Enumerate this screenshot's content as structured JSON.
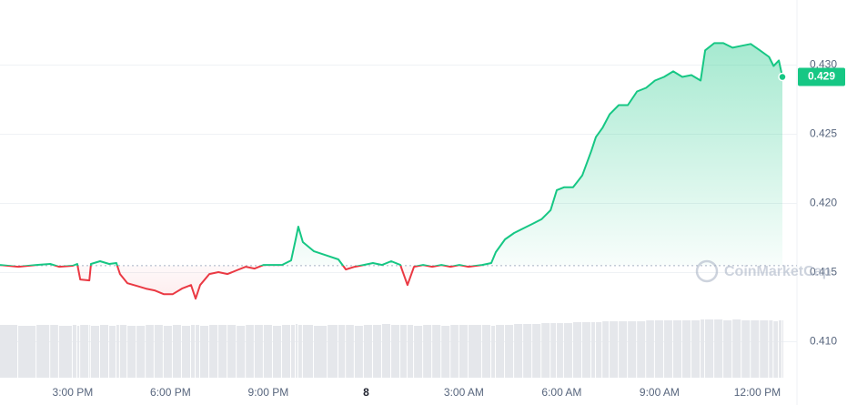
{
  "chart_data": {
    "type": "line",
    "x": [
      12.77,
      13.33,
      13.89,
      14.31,
      14.58,
      15.0,
      15.14,
      15.23,
      15.51,
      15.56,
      15.84,
      16.12,
      16.34,
      16.45,
      16.68,
      16.96,
      17.24,
      17.51,
      17.79,
      18.07,
      18.35,
      18.63,
      18.77,
      18.91,
      19.19,
      19.47,
      19.75,
      20.03,
      20.31,
      20.58,
      20.86,
      21.14,
      21.42,
      21.7,
      21.84,
      21.92,
      22.06,
      22.4,
      22.82,
      23.15,
      23.38,
      23.65,
      23.93,
      24.21,
      24.49,
      24.77,
      25.05,
      25.27,
      25.47,
      25.75,
      26.03,
      26.31,
      26.59,
      26.86,
      27.14,
      27.56,
      27.84,
      27.98,
      28.26,
      28.54,
      28.82,
      29.1,
      29.38,
      29.66,
      29.85,
      30.07,
      30.35,
      30.63,
      30.91,
      31.05,
      31.25,
      31.47,
      31.75,
      32.03,
      32.31,
      32.59,
      32.86,
      33.14,
      33.42,
      33.7,
      33.98,
      34.26,
      34.4,
      34.68,
      34.96,
      35.24,
      35.52,
      35.8,
      36.08,
      36.36,
      36.5,
      36.66,
      36.77
    ],
    "series": [
      {
        "color": "#16c784",
        "negative_color": "#ea3943",
        "values": [
          0.41555,
          0.41542,
          0.41555,
          0.41562,
          0.41542,
          0.41549,
          0.41562,
          0.4145,
          0.41443,
          0.41562,
          0.41582,
          0.41562,
          0.41569,
          0.41489,
          0.41423,
          0.41404,
          0.41384,
          0.41371,
          0.41344,
          0.41344,
          0.41384,
          0.4141,
          0.41311,
          0.4141,
          0.41489,
          0.41503,
          0.41489,
          0.41516,
          0.41542,
          0.41529,
          0.41555,
          0.41555,
          0.41555,
          0.41588,
          0.4174,
          0.41832,
          0.4172,
          0.41654,
          0.41621,
          0.41595,
          0.41522,
          0.41542,
          0.41555,
          0.41569,
          0.41555,
          0.41582,
          0.41555,
          0.4141,
          0.41542,
          0.41555,
          0.41542,
          0.41555,
          0.41542,
          0.41555,
          0.41542,
          0.41555,
          0.41569,
          0.41648,
          0.4174,
          0.41786,
          0.41819,
          0.41852,
          0.41885,
          0.41951,
          0.42096,
          0.42116,
          0.42116,
          0.42202,
          0.4238,
          0.42479,
          0.42545,
          0.42644,
          0.4271,
          0.4271,
          0.42809,
          0.42835,
          0.42888,
          0.42914,
          0.42954,
          0.42914,
          0.42927,
          0.42888,
          0.43106,
          0.43158,
          0.43158,
          0.43125,
          0.43139,
          0.43152,
          0.43106,
          0.43059,
          0.42993,
          0.43033,
          0.42914
        ]
      },
      {
        "color": "#e5e7eb",
        "axis": "y2",
        "values": [
          58,
          57,
          58,
          58,
          57,
          58,
          57,
          58,
          58,
          57,
          58,
          57,
          58,
          58,
          57,
          57,
          58,
          58,
          57,
          58,
          57,
          58,
          58,
          57,
          58,
          58,
          58,
          57,
          58,
          58,
          58,
          57,
          58,
          58,
          59,
          58,
          58,
          57,
          58,
          58,
          58,
          57,
          58,
          58,
          59,
          58,
          58,
          58,
          57,
          58,
          58,
          57,
          58,
          58,
          58,
          58,
          57,
          58,
          58,
          59,
          59,
          59,
          60,
          60,
          60,
          60,
          61,
          61,
          61,
          61,
          62,
          62,
          62,
          62,
          62,
          63,
          63,
          63,
          63,
          63,
          63,
          64,
          64,
          64,
          63,
          64,
          63,
          63,
          63,
          63,
          62,
          63,
          63
        ]
      }
    ],
    "reference_line": 0.4155,
    "last_value_label": "0.429",
    "watermark": "CoinMarketCap",
    "xlim": [
      12.77,
      36.77
    ],
    "xticks": [
      {
        "value": 15,
        "label": "3:00 PM"
      },
      {
        "value": 18,
        "label": "6:00 PM"
      },
      {
        "value": 21,
        "label": "9:00 PM"
      },
      {
        "value": 24,
        "label": "8"
      },
      {
        "value": 27,
        "label": "3:00 AM"
      },
      {
        "value": 30,
        "label": "6:00 AM"
      },
      {
        "value": 33,
        "label": "9:00 AM"
      },
      {
        "value": 36,
        "label": "12:00 PM"
      }
    ],
    "ylim": [
      0.4074,
      0.4347
    ],
    "yticks": [
      {
        "value": 0.41,
        "label": "0.410"
      },
      {
        "value": 0.415,
        "label": "0.415"
      },
      {
        "value": 0.42,
        "label": "0.420"
      },
      {
        "value": 0.425,
        "label": "0.425"
      },
      {
        "value": 0.43,
        "label": "0.430"
      }
    ],
    "y2lim": [
      0,
      100
    ],
    "grid": true
  }
}
